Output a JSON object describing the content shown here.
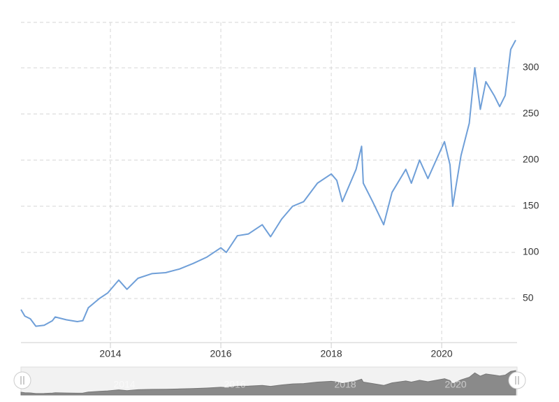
{
  "chart_data": {
    "type": "line",
    "x": [
      2012.38,
      2012.45,
      2012.55,
      2012.65,
      2012.8,
      2012.95,
      2013.0,
      2013.2,
      2013.4,
      2013.5,
      2013.6,
      2013.8,
      2013.95,
      2014.15,
      2014.3,
      2014.5,
      2014.75,
      2015.0,
      2015.25,
      2015.5,
      2015.75,
      2016.0,
      2016.1,
      2016.3,
      2016.5,
      2016.75,
      2016.9,
      2017.1,
      2017.3,
      2017.5,
      2017.75,
      2018.0,
      2018.1,
      2018.2,
      2018.45,
      2018.55,
      2018.58,
      2018.75,
      2018.95,
      2019.1,
      2019.35,
      2019.45,
      2019.6,
      2019.75,
      2019.9,
      2020.05,
      2020.15,
      2020.2,
      2020.35,
      2020.5,
      2020.6,
      2020.7,
      2020.8,
      2020.95,
      2021.05,
      2021.15,
      2021.25,
      2021.34
    ],
    "series": [
      {
        "color": "#6f9fd8",
        "values": [
          38,
          31,
          28,
          20,
          21,
          26,
          30,
          27,
          25,
          26,
          40,
          50,
          56,
          70,
          60,
          72,
          77,
          78,
          82,
          88,
          95,
          105,
          100,
          118,
          120,
          130,
          117,
          136,
          150,
          155,
          175,
          185,
          178,
          155,
          190,
          215,
          175,
          155,
          130,
          165,
          190,
          175,
          200,
          180,
          200,
          220,
          195,
          150,
          205,
          240,
          300,
          255,
          285,
          270,
          258,
          270,
          320,
          330
        ]
      }
    ],
    "xlim": [
      2012.38,
      2021.34
    ],
    "xticks": [
      2014,
      2016,
      2018,
      2020
    ],
    "ylim": [
      0,
      350
    ],
    "yticks": [
      50,
      100,
      150,
      200,
      250,
      300
    ],
    "grid": true
  }
}
